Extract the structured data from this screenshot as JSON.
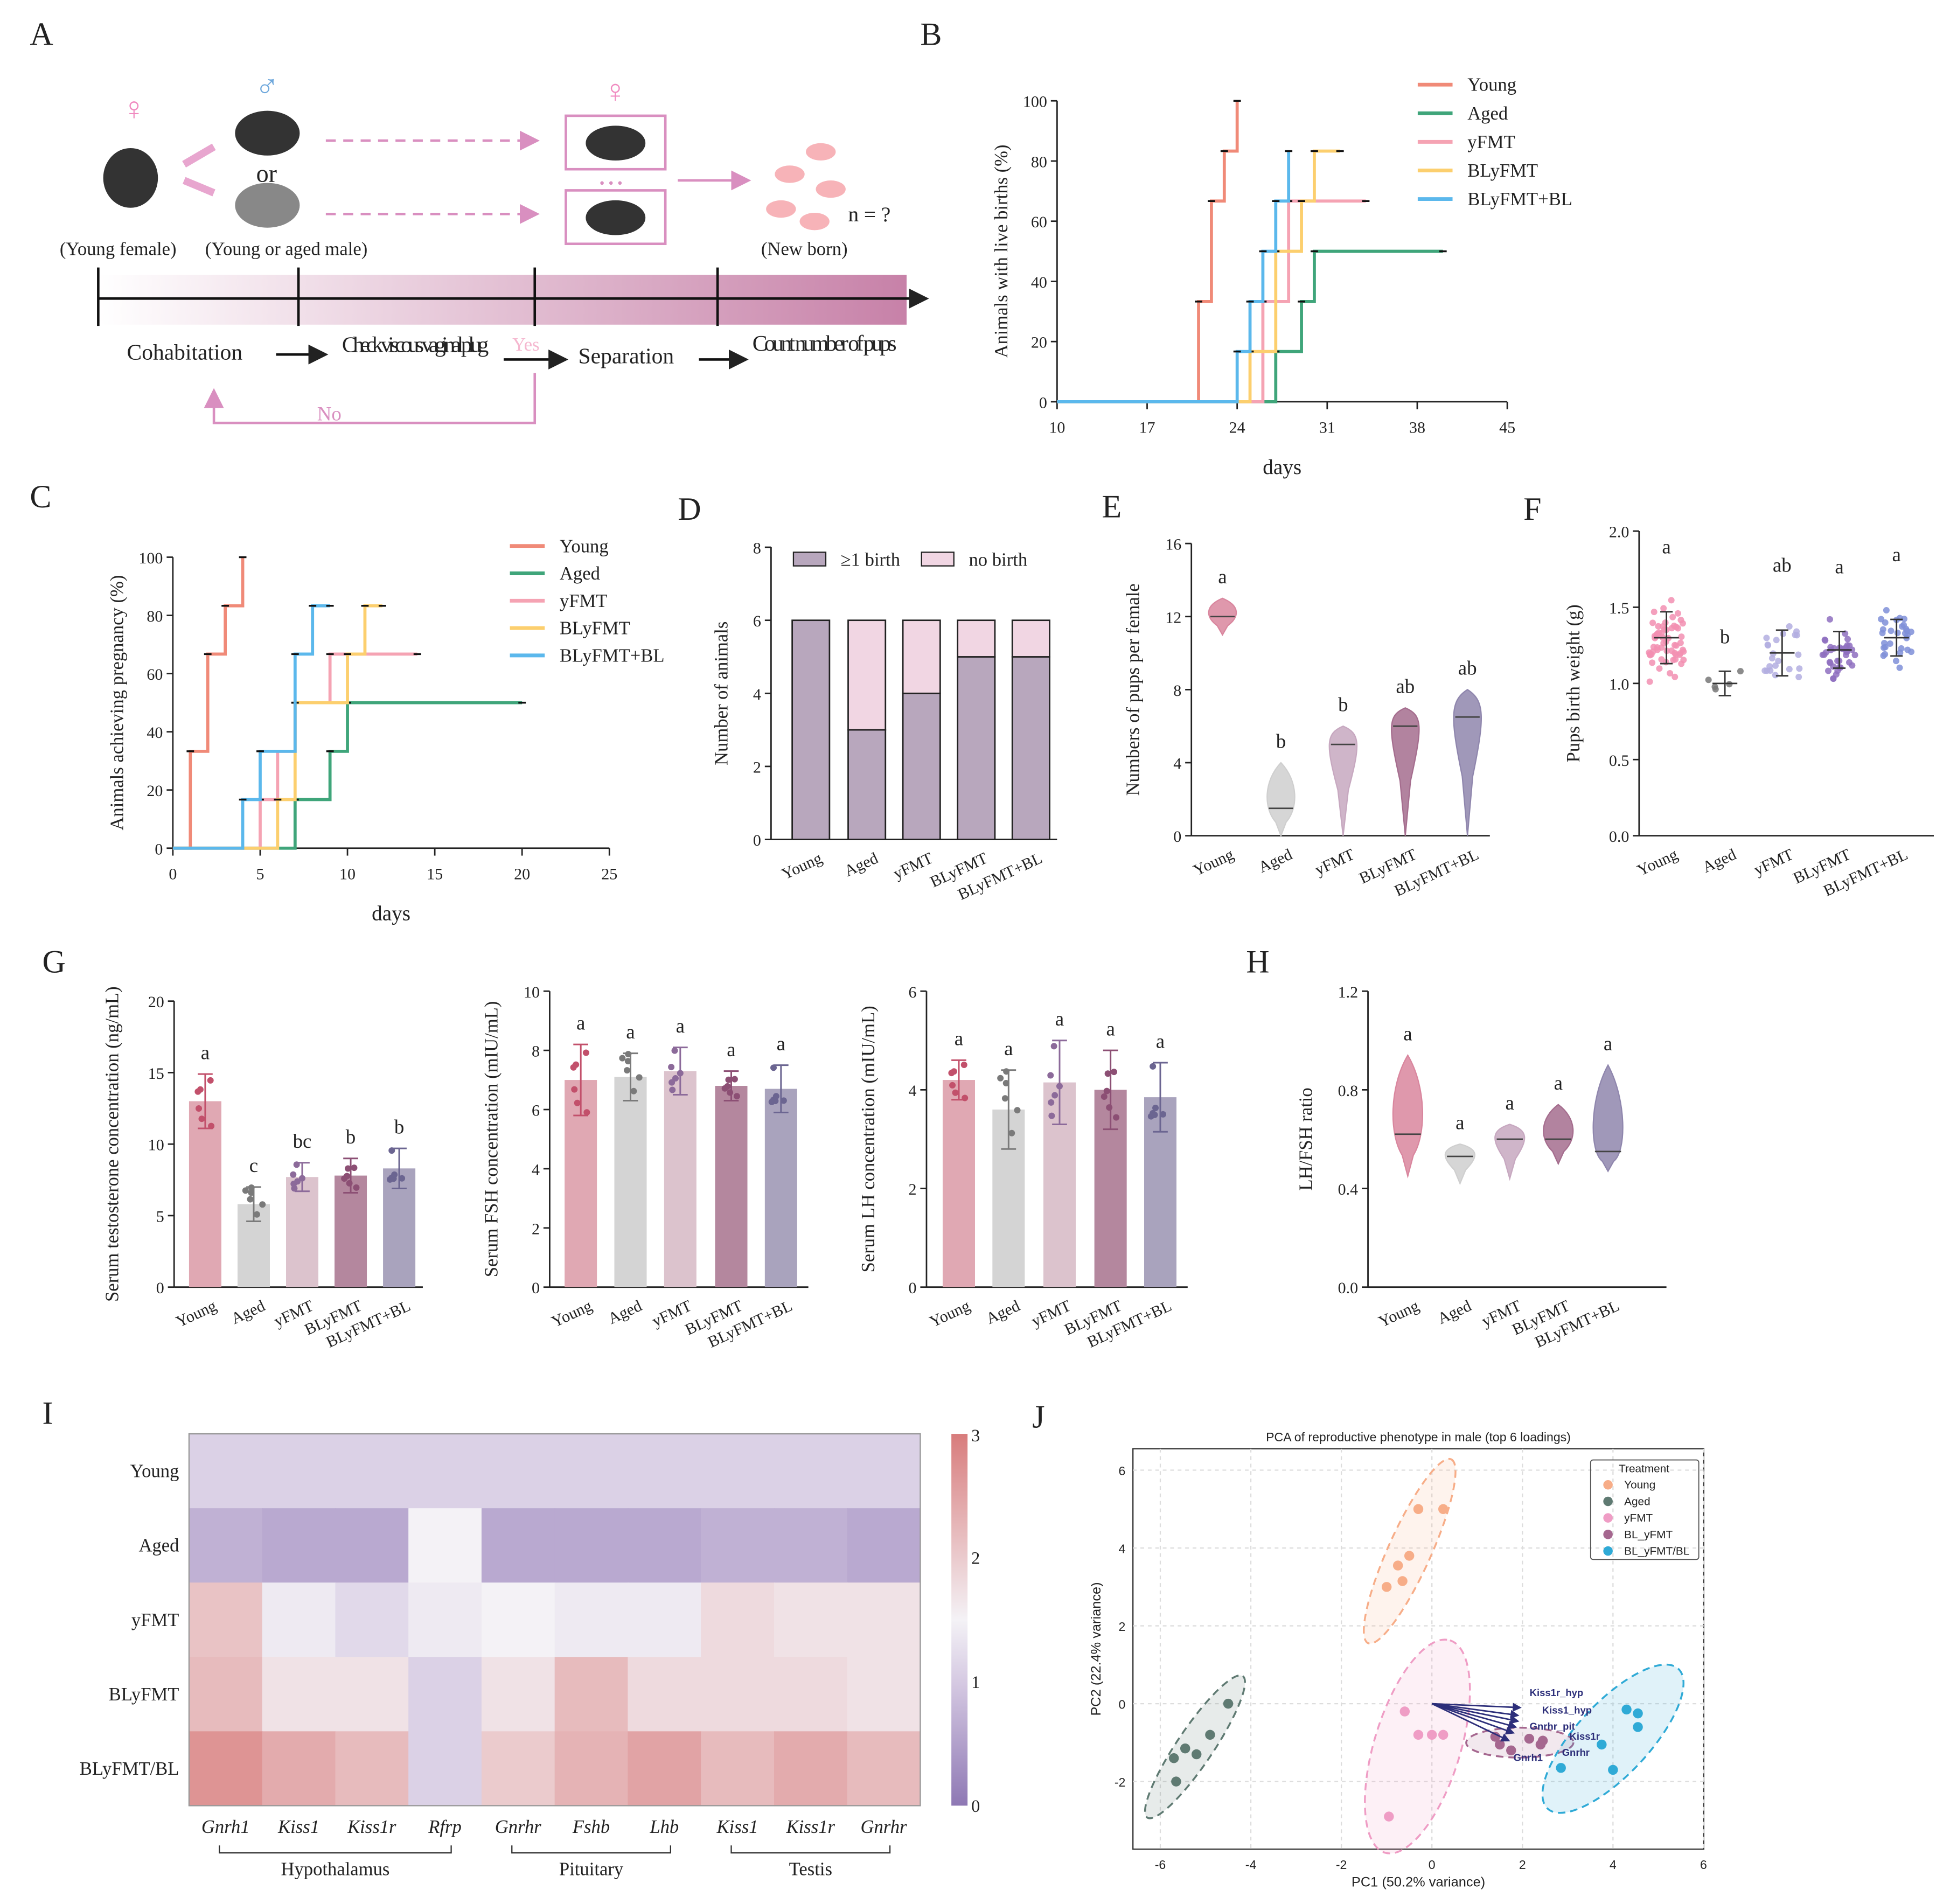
{
  "panel_labels": [
    "A",
    "B",
    "C",
    "D",
    "E",
    "F",
    "G",
    "H",
    "I",
    "J"
  ],
  "panel_a": {
    "female_label": "(Young female)",
    "male_label": "(Young or aged male)",
    "or_text": "or",
    "newborn_label": "(New born)",
    "n_text": "n = ?",
    "steps": [
      "Cohabitation",
      "Check viscous vaginal plug",
      "Separation",
      "Count number of pups"
    ],
    "yes_label": "Yes",
    "no_label": "No",
    "female_symbol": "♀",
    "male_symbol": "♂",
    "dots": "• • •"
  },
  "colors": {
    "Young": "#f08a78",
    "Aged": "#3fa57a",
    "yFMT": "#f5a3b3",
    "BLyFMT": "#fccf6e",
    "BLyFMT+BL": "#5bb8ec",
    "birth": "#b8a7bd",
    "nobirth": "#f1d6e3",
    "g_bars": [
      "#e0a8b3",
      "#d4d4d4",
      "#dcc3cd",
      "#b4879e",
      "#a9a3bd"
    ],
    "g_dots": [
      "#c2506b",
      "#7a7a7a",
      "#8c6a9a",
      "#8c4f74",
      "#6b6591"
    ]
  },
  "groups": [
    "Young",
    "Aged",
    "yFMT",
    "BLyFMT",
    "BLyFMT+BL"
  ],
  "chart_data": [
    {
      "id": "B",
      "type": "line",
      "step": true,
      "xlabel": "days",
      "ylabel": "Animals with live births (%)",
      "xlim": [
        10,
        45
      ],
      "ylim": [
        0,
        100
      ],
      "xticks": [
        10,
        17,
        24,
        31,
        38,
        45
      ],
      "yticks": [
        0,
        20,
        40,
        60,
        80,
        100
      ],
      "series": [
        {
          "name": "Young",
          "points": [
            [
              10,
              0
            ],
            [
              21,
              33.3
            ],
            [
              22,
              66.7
            ],
            [
              23,
              83.3
            ],
            [
              24,
              100
            ]
          ]
        },
        {
          "name": "Aged",
          "points": [
            [
              10,
              0
            ],
            [
              27,
              16.7
            ],
            [
              29,
              33.3
            ],
            [
              30,
              50
            ],
            [
              40,
              50
            ]
          ]
        },
        {
          "name": "yFMT",
          "points": [
            [
              10,
              0
            ],
            [
              26,
              33.3
            ],
            [
              28,
              66.7
            ],
            [
              34,
              66.7
            ]
          ]
        },
        {
          "name": "BLyFMT",
          "points": [
            [
              10,
              0
            ],
            [
              25,
              16.7
            ],
            [
              27,
              50
            ],
            [
              29,
              66.7
            ],
            [
              30,
              83.3
            ],
            [
              32,
              83.3
            ]
          ]
        },
        {
          "name": "BLyFMT+BL",
          "points": [
            [
              10,
              0
            ],
            [
              24,
              16.7
            ],
            [
              25,
              33.3
            ],
            [
              26,
              50
            ],
            [
              27,
              66.7
            ],
            [
              28,
              83.3
            ]
          ]
        }
      ]
    },
    {
      "id": "C",
      "type": "line",
      "step": true,
      "xlabel": "days",
      "ylabel": "Animals achieving pregnancy (%)",
      "xlim": [
        0,
        25
      ],
      "ylim": [
        0,
        100
      ],
      "xticks": [
        0,
        5,
        10,
        15,
        20,
        25
      ],
      "yticks": [
        0,
        20,
        40,
        60,
        80,
        100
      ],
      "series": [
        {
          "name": "Young",
          "points": [
            [
              0,
              0
            ],
            [
              1,
              33.3
            ],
            [
              2,
              66.7
            ],
            [
              3,
              83.3
            ],
            [
              4,
              100
            ]
          ]
        },
        {
          "name": "Aged",
          "points": [
            [
              0,
              0
            ],
            [
              7,
              16.7
            ],
            [
              9,
              33.3
            ],
            [
              10,
              50
            ],
            [
              20,
              50
            ]
          ]
        },
        {
          "name": "yFMT",
          "points": [
            [
              0,
              0
            ],
            [
              5,
              16.7
            ],
            [
              6,
              33.3
            ],
            [
              7,
              50
            ],
            [
              9,
              66.7
            ],
            [
              14,
              66.7
            ]
          ]
        },
        {
          "name": "BLyFMT",
          "points": [
            [
              0,
              0
            ],
            [
              6,
              16.7
            ],
            [
              7,
              50
            ],
            [
              10,
              66.7
            ],
            [
              11,
              83.3
            ],
            [
              12,
              83.3
            ]
          ]
        },
        {
          "name": "BLyFMT+BL",
          "points": [
            [
              0,
              0
            ],
            [
              4,
              16.7
            ],
            [
              5,
              33.3
            ],
            [
              7,
              66.7
            ],
            [
              8,
              83.3
            ],
            [
              9,
              83.3
            ]
          ]
        }
      ]
    },
    {
      "id": "D",
      "type": "bar",
      "stacked": true,
      "ylabel": "Number of animals",
      "ylim": [
        0,
        8
      ],
      "yticks": [
        0,
        2,
        4,
        6,
        8
      ],
      "categories": [
        "Young",
        "Aged",
        "yFMT",
        "BLyFMT",
        "BLyFMT+BL"
      ],
      "series": [
        {
          "name": "≥1 birth",
          "values": [
            6,
            3,
            4,
            5,
            5
          ]
        },
        {
          "name": "no birth",
          "values": [
            0,
            3,
            2,
            1,
            1
          ]
        }
      ]
    },
    {
      "id": "E",
      "type": "violin",
      "ylabel": "Numbers of pups per female",
      "ylim": [
        0,
        16
      ],
      "yticks": [
        0,
        4,
        8,
        12,
        16
      ],
      "categories": [
        "Young",
        "Aged",
        "yFMT",
        "BLyFMT",
        "BLyFMT+BL"
      ],
      "medians": [
        12,
        1.5,
        5,
        6,
        6.5
      ],
      "mins": [
        11,
        0,
        0,
        0,
        0
      ],
      "maxs": [
        13,
        4,
        6,
        7,
        8
      ],
      "letters": [
        "a",
        "b",
        "b",
        "ab",
        "ab"
      ]
    },
    {
      "id": "F",
      "type": "scatter",
      "ylabel": "Pups birth weight  (g)",
      "ylim": [
        0,
        2
      ],
      "yticks": [
        "0.0",
        "0.5",
        "1.0",
        "1.5",
        "2.0"
      ],
      "categories": [
        "Young",
        "Aged",
        "yFMT",
        "BLyFMT",
        "BLyFMT+BL"
      ],
      "means": [
        1.3,
        1.0,
        1.2,
        1.22,
        1.3
      ],
      "sds": [
        0.17,
        0.08,
        0.15,
        0.12,
        0.12
      ],
      "n": [
        60,
        5,
        22,
        35,
        30
      ],
      "letters": [
        "a",
        "b",
        "ab",
        "a",
        "a"
      ]
    },
    {
      "id": "G1",
      "type": "bar",
      "ylabel": "Serum testosterone concentration (ng/mL)",
      "ylim": [
        0,
        20
      ],
      "yticks": [
        0,
        5,
        10,
        15,
        20
      ],
      "categories": [
        "Young",
        "Aged",
        "yFMT",
        "BLyFMT",
        "BLyFMT+BL"
      ],
      "values": [
        13,
        5.8,
        7.7,
        7.8,
        8.3
      ],
      "sds": [
        1.9,
        1.2,
        1.0,
        1.2,
        1.4
      ],
      "letters": [
        "a",
        "c",
        "bc",
        "b",
        "b"
      ]
    },
    {
      "id": "G2",
      "type": "bar",
      "ylabel": "Serum FSH concentration (mIU/mL)",
      "ylim": [
        0,
        10
      ],
      "yticks": [
        0,
        2,
        4,
        6,
        8,
        10
      ],
      "categories": [
        "Young",
        "Aged",
        "yFMT",
        "BLyFMT",
        "BLyFMT+BL"
      ],
      "values": [
        7.0,
        7.1,
        7.3,
        6.8,
        6.7
      ],
      "sds": [
        1.2,
        0.8,
        0.8,
        0.5,
        0.8
      ],
      "letters": [
        "a",
        "a",
        "a",
        "a",
        "a"
      ]
    },
    {
      "id": "G3",
      "type": "bar",
      "ylabel": "Serum LH concentration (mIU/mL)",
      "ylim": [
        0,
        6
      ],
      "yticks": [
        0,
        2,
        4,
        6
      ],
      "categories": [
        "Young",
        "Aged",
        "yFMT",
        "BLyFMT",
        "BLyFMT+BL"
      ],
      "values": [
        4.2,
        3.6,
        4.15,
        4.0,
        3.85
      ],
      "sds": [
        0.4,
        0.8,
        0.85,
        0.8,
        0.7
      ],
      "letters": [
        "a",
        "a",
        "a",
        "a",
        "a"
      ]
    },
    {
      "id": "H",
      "type": "violin",
      "ylabel": "LH/FSH ratio",
      "ylim": [
        0,
        1.2
      ],
      "yticks": [
        "0.0",
        "0.4",
        "0.8",
        "1.2"
      ],
      "categories": [
        "Young",
        "Aged",
        "yFMT",
        "BLyFMT",
        "BLyFMT+BL"
      ],
      "medians": [
        0.62,
        0.53,
        0.6,
        0.6,
        0.55
      ],
      "mins": [
        0.45,
        0.42,
        0.44,
        0.5,
        0.47
      ],
      "maxs": [
        0.94,
        0.58,
        0.66,
        0.74,
        0.9
      ],
      "letters": [
        "a",
        "a",
        "a",
        "a",
        "a"
      ]
    },
    {
      "id": "I",
      "type": "heatmap",
      "rows": [
        "Young",
        "Aged",
        "yFMT",
        "BLyFMT",
        "BLyFMT/BL"
      ],
      "columns": [
        "Gnrh1",
        "Kiss1",
        "Kiss1r",
        "Rfrp",
        "Gnrhr",
        "Fshb",
        "Lhb",
        "Kiss1",
        "Kiss1r",
        "Gnrhr"
      ],
      "column_groups": [
        {
          "name": "Hypothalamus",
          "span": 4
        },
        {
          "name": "Pituitary",
          "span": 3
        },
        {
          "name": "Testis",
          "span": 3
        }
      ],
      "values": [
        [
          1.1,
          1.1,
          1.1,
          1.1,
          1.1,
          1.1,
          1.1,
          1.1,
          1.1,
          1.1
        ],
        [
          0.7,
          0.6,
          0.6,
          1.5,
          0.6,
          0.6,
          0.6,
          0.7,
          0.7,
          0.6
        ],
        [
          2.1,
          1.4,
          1.2,
          1.4,
          1.5,
          1.4,
          1.4,
          1.8,
          1.7,
          1.7
        ],
        [
          2.2,
          1.7,
          1.7,
          1.1,
          1.7,
          2.2,
          1.8,
          1.8,
          1.8,
          1.7
        ],
        [
          2.7,
          2.4,
          2.2,
          1.1,
          2.0,
          2.3,
          2.5,
          2.2,
          2.4,
          2.2
        ]
      ],
      "colorbar_ticks": [
        0,
        1,
        2,
        3
      ],
      "vmin": 0,
      "vmax": 3
    },
    {
      "id": "J",
      "type": "scatter",
      "title": "PCA of reproductive phenotype in male (top 6 loadings)",
      "xlabel": "PC1 (50.2% variance)",
      "ylabel": "PC2 (22.4% variance)",
      "xlim": [
        -6.6,
        6
      ],
      "ylim": [
        -3.8,
        6.5
      ],
      "xticks": [
        -6,
        -4,
        -2,
        0,
        2,
        4,
        6
      ],
      "yticks": [
        -2,
        0,
        2,
        4,
        6
      ],
      "legend_title": "Treatment",
      "legend_position": "top-right",
      "series": [
        {
          "name": "Young",
          "color": "#f7ad88",
          "points": [
            [
              -0.3,
              5
            ],
            [
              0.25,
              5
            ],
            [
              -0.5,
              3.8
            ],
            [
              -0.75,
              3.55
            ],
            [
              -0.65,
              3.15
            ],
            [
              -1.0,
              3.0
            ]
          ]
        },
        {
          "name": "Aged",
          "color": "#5f7a72",
          "points": [
            [
              -4.5,
              0
            ],
            [
              -4.9,
              -0.8
            ],
            [
              -5.45,
              -1.15
            ],
            [
              -5.2,
              -1.3
            ],
            [
              -5.7,
              -1.4
            ],
            [
              -5.65,
              -2.0
            ]
          ]
        },
        {
          "name": "yFMT",
          "color": "#ef9dc5",
          "points": [
            [
              -0.6,
              -0.2
            ],
            [
              -0.3,
              -0.8
            ],
            [
              0,
              -0.8
            ],
            [
              0.25,
              -0.8
            ],
            [
              -0.95,
              -2.9
            ]
          ]
        },
        {
          "name": "BL_yFMT",
          "color": "#a5678f",
          "points": [
            [
              1.4,
              -0.85
            ],
            [
              1.5,
              -1.05
            ],
            [
              1.75,
              -1.2
            ],
            [
              2.15,
              -0.9
            ],
            [
              2.4,
              -1.05
            ],
            [
              2.45,
              -0.95
            ]
          ]
        },
        {
          "name": "BL_yFMT/BL",
          "color": "#2faad6",
          "points": [
            [
              4.3,
              -0.15
            ],
            [
              4.55,
              -0.25
            ],
            [
              4.55,
              -0.6
            ],
            [
              3.75,
              -1.05
            ],
            [
              2.85,
              -1.65
            ],
            [
              4.0,
              -1.7
            ]
          ]
        }
      ],
      "loadings": [
        {
          "name": "Kiss1r_hyp",
          "vec": [
            1.95,
            -0.1
          ]
        },
        {
          "name": "Kiss1_hyp",
          "vec": [
            1.9,
            -0.3
          ]
        },
        {
          "name": "Gnrhr_pit",
          "vec": [
            1.9,
            -0.45
          ]
        },
        {
          "name": "Kiss1r",
          "vec": [
            1.85,
            -0.6
          ]
        },
        {
          "name": "Gnrhr",
          "vec": [
            1.8,
            -0.75
          ]
        },
        {
          "name": "Gnrh1",
          "vec": [
            1.7,
            -0.95
          ]
        }
      ]
    }
  ]
}
